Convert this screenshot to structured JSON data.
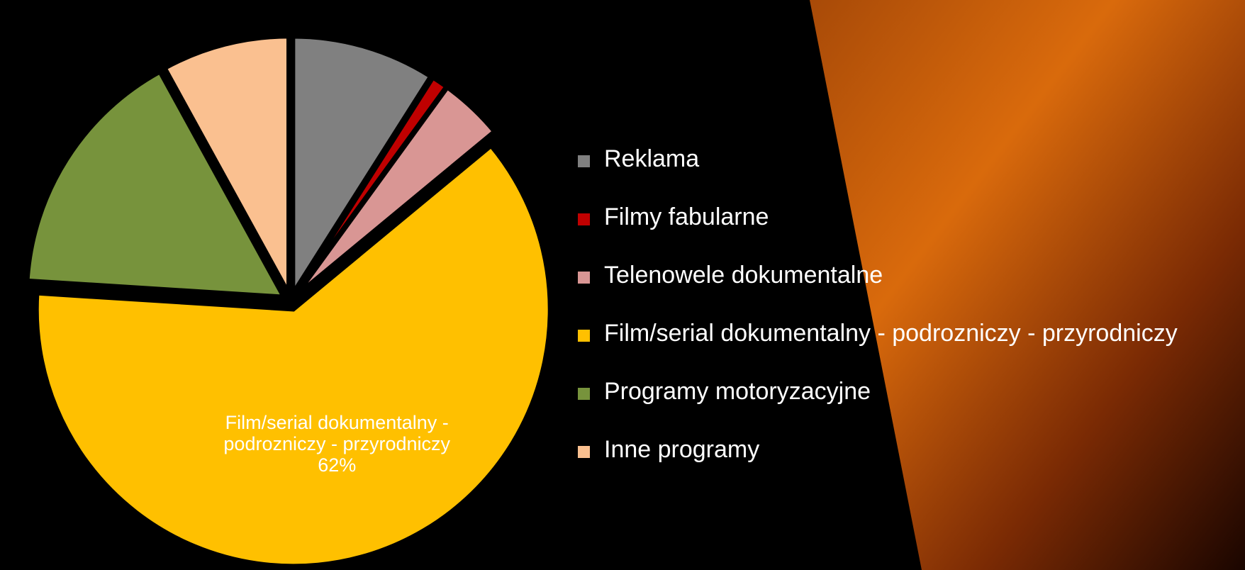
{
  "chart_data": {
    "type": "pie",
    "categories": [
      "Reklama",
      "Filmy fabularne",
      "Telenowele dokumentalne",
      "Film/serial dokumentalny - podrozniczy - przyrodniczy",
      "Programy motoryzacyjne",
      "Inne programy"
    ],
    "values": [
      9,
      1,
      4,
      62,
      16,
      8
    ],
    "value_labels": [
      null,
      null,
      null,
      "62%",
      null,
      null
    ],
    "colors": [
      "#808080",
      "#c00000",
      "#d99694",
      "#ffc000",
      "#77933c",
      "#fac090"
    ],
    "legend": "right"
  }
}
